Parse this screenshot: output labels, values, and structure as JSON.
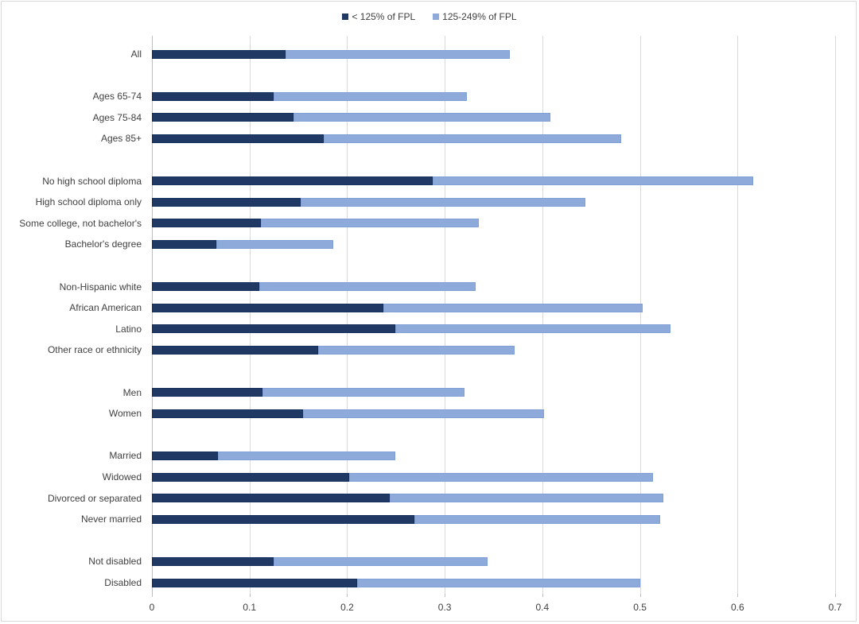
{
  "chart_data": {
    "type": "bar",
    "orientation": "horizontal",
    "stacked": true,
    "title": "",
    "xlabel": "",
    "ylabel": "",
    "xlim": [
      0,
      0.7
    ],
    "xticks": [
      "0",
      "0.1",
      "0.2",
      "0.3",
      "0.4",
      "0.5",
      "0.6",
      "0.7"
    ],
    "grid": true,
    "legend_position": "top",
    "categories": [
      "All",
      "Ages 65-74",
      "Ages 75-84",
      "Ages 85+",
      "No high school diploma",
      "High school diploma only",
      "Some college, not bachelor's",
      "Bachelor's degree",
      "Non-Hispanic white",
      "African American",
      "Latino",
      "Other race or ethnicity",
      "Men",
      "Women",
      "Married",
      "Widowed",
      "Divorced or separated",
      "Never married",
      "Not disabled",
      "Disabled"
    ],
    "slots": [
      0,
      2,
      3,
      4,
      6,
      7,
      8,
      9,
      11,
      12,
      13,
      14,
      16,
      17,
      19,
      20,
      21,
      22,
      24,
      25
    ],
    "series": [
      {
        "name": "< 125% of FPL",
        "color": "#203864",
        "values": [
          0.137,
          0.125,
          0.145,
          0.176,
          0.288,
          0.152,
          0.112,
          0.066,
          0.11,
          0.237,
          0.249,
          0.17,
          0.113,
          0.155,
          0.068,
          0.202,
          0.244,
          0.269,
          0.125,
          0.21
        ]
      },
      {
        "name": "125-249% of FPL",
        "color": "#8eaadb",
        "values": [
          0.23,
          0.198,
          0.263,
          0.305,
          0.328,
          0.292,
          0.223,
          0.12,
          0.222,
          0.266,
          0.282,
          0.202,
          0.207,
          0.247,
          0.181,
          0.311,
          0.28,
          0.252,
          0.219,
          0.29
        ]
      }
    ]
  },
  "legend": {
    "items": [
      {
        "label": "< 125% of FPL",
        "color": "#203864"
      },
      {
        "label": "125-249% of FPL",
        "color": "#8eaadb"
      }
    ]
  }
}
